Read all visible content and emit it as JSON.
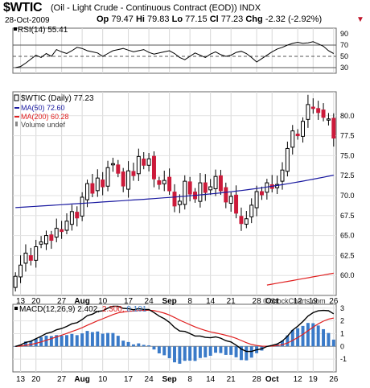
{
  "header": {
    "symbol": "$WTIC",
    "description": "(Oil - Light Crude - Continuous Contract (EOD)) INDX",
    "date": "28-Oct-2009",
    "open_label": "Op",
    "open": "79.47",
    "high_label": "Hi",
    "high": "79.83",
    "low_label": "Lo",
    "low": "77.15",
    "close_label": "Cl",
    "close": "77.23",
    "change_label": "Chg",
    "change": "-2.32 (-2.92%)",
    "change_arrow": "▼",
    "credit": "© StockCharts.com"
  },
  "colors": {
    "up_candle": "#ffffff",
    "down_candle": "#cc1a3a",
    "ma50": "#1a1aa0",
    "ma200": "#e02020",
    "macd": "#000000",
    "signal": "#e02020",
    "histogram": "#3a7ac8"
  },
  "chart_data": [
    {
      "type": "line",
      "title": "RSI(14) 55.41",
      "legend": "top-left",
      "ylim": [
        20,
        100
      ],
      "y_ticks": [
        30,
        50,
        70,
        90
      ],
      "reference_lines": [
        30,
        50,
        70
      ],
      "series": [
        {
          "name": "RSI(14)",
          "values": [
            30,
            32,
            38,
            45,
            52,
            48,
            55,
            50,
            62,
            58,
            55,
            60,
            66,
            64,
            60,
            58,
            56,
            50,
            55,
            60,
            62,
            64,
            61,
            58,
            60,
            62,
            57,
            54,
            56,
            58,
            60,
            55,
            48,
            44,
            50,
            56,
            52,
            48,
            54,
            58,
            53,
            50,
            52,
            57,
            59,
            55,
            48,
            40,
            46,
            52,
            58,
            63,
            66,
            70,
            73,
            75,
            73,
            74,
            76,
            72,
            68,
            60,
            55
          ]
        }
      ]
    },
    {
      "type": "candlestick",
      "title": "$WTIC (Daily) 77.23",
      "legend": "top-left",
      "ylim": [
        57.5,
        83
      ],
      "y_ticks": [
        60.0,
        62.5,
        65.0,
        67.5,
        70.0,
        72.5,
        75.0,
        77.5,
        80.0
      ],
      "x_tick_labels": [
        "13",
        "20",
        "27",
        "Aug",
        "10",
        "17",
        "24",
        "Sep",
        "8",
        "14",
        "21",
        "28",
        "Oct",
        "12",
        "19",
        "26"
      ],
      "legend_entries": [
        "$WTIC (Daily) 77.23",
        "MA(50) 72.60",
        "MA(200) 60.28",
        "Volume undef"
      ],
      "closes": [
        59.9,
        61.3,
        62.8,
        61.9,
        63.6,
        64.2,
        65.0,
        64.4,
        65.9,
        65.5,
        66.8,
        68.0,
        67.2,
        69.8,
        71.5,
        70.3,
        72.2,
        71.1,
        73.5,
        74.0,
        72.8,
        71.2,
        73.1,
        72.5,
        74.9,
        73.8,
        74.6,
        72.1,
        71.4,
        71.9,
        70.6,
        68.7,
        69.3,
        71.8,
        70.2,
        69.6,
        71.6,
        70.4,
        71.1,
        72.4,
        70.6,
        69.2,
        69.9,
        67.8,
        66.5,
        67.1,
        68.8,
        70.5,
        70.1,
        71.6,
        70.9,
        71.4,
        73.2,
        75.9,
        78.1,
        77.5,
        79.3,
        81.4,
        80.9,
        80.4,
        79.8,
        79.6,
        77.2
      ],
      "series": [
        {
          "name": "MA(50)",
          "start": 68.5,
          "end": 72.6
        },
        {
          "name": "MA(200)",
          "start": 58.8,
          "end": 60.28
        }
      ]
    },
    {
      "type": "line+bar",
      "title": "MACD(12,26,9) 2.402, 2.300, 0.101",
      "legend": "top-left",
      "ylim": [
        -2,
        3.3
      ],
      "y_ticks": [
        -1,
        0,
        1,
        2,
        3
      ],
      "series": [
        {
          "name": "MACD",
          "value": 2.402
        },
        {
          "name": "Signal",
          "value": 2.3
        },
        {
          "name": "Histogram",
          "value": 0.101
        }
      ]
    }
  ]
}
